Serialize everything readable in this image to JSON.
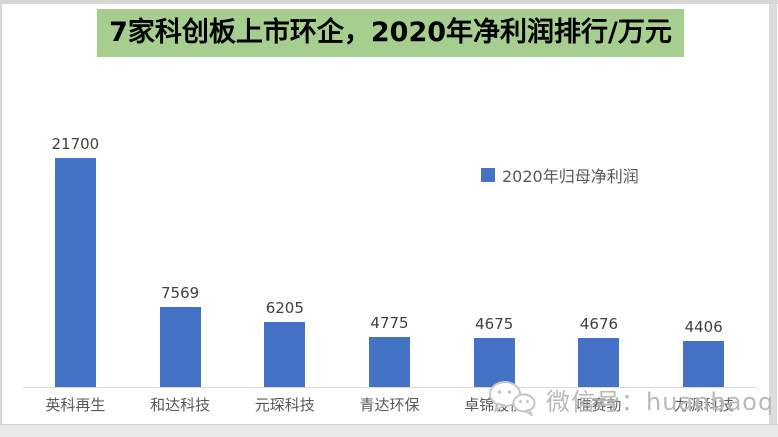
{
  "title": {
    "text": "7家科创板上市环企，2020年净利润排行/万元",
    "bg_color": "#a6ce8e",
    "text_color": "#000000"
  },
  "legend": {
    "label": "2020年归母净利润",
    "marker_color": "#4472c4"
  },
  "watermark": {
    "text": "微信号：huanbaoq",
    "icon": "wechat-icon",
    "text_color": "#b9b9b9"
  },
  "colors": {
    "bar": "#4472c4",
    "axis_line": "#d9d9d9",
    "value_label_text": "#404040",
    "category_label_text": "#595959",
    "frame_gray": "#dcdcdc"
  },
  "chart_data": {
    "type": "bar",
    "title": "7家科创板上市环企，2020年净利润排行/万元",
    "unit": "万元",
    "categories": [
      "英科再生",
      "和达科技",
      "元琛科技",
      "青达环保",
      "卓锦股份",
      "唯赛勃",
      "力源科技"
    ],
    "values": [
      21700,
      7569,
      6205,
      4775,
      4675,
      4676,
      4406
    ],
    "series": [
      {
        "name": "2020年归母净利润",
        "values": [
          21700,
          7569,
          6205,
          4775,
          4675,
          4676,
          4406
        ]
      }
    ],
    "data_labels": true,
    "xlabel": "",
    "ylabel": "",
    "ylim": [
      0,
      22000
    ],
    "grid": false,
    "y_axis_visible": false,
    "legend_position": "center-right"
  }
}
